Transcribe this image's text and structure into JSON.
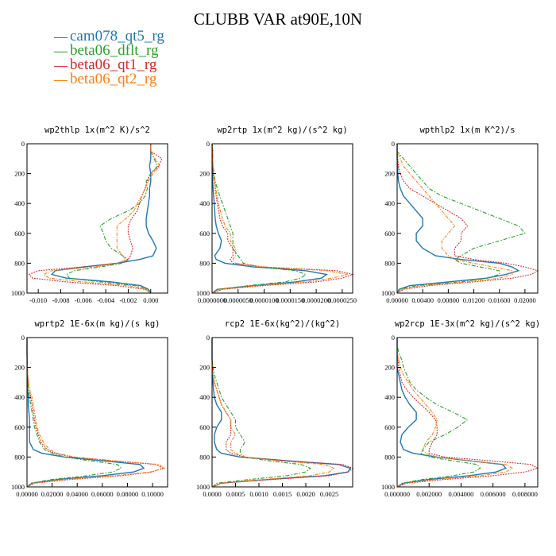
{
  "title": "CLUBB VAR at90E,10N",
  "legend": [
    {
      "label": "cam078_qt5_rg",
      "color": "#1f77b4"
    },
    {
      "label": "beta06_dflt_rg",
      "color": "#2ca02c"
    },
    {
      "label": "beta06_qt1_rg",
      "color": "#d62728"
    },
    {
      "label": "beta06_qt2_rg",
      "color": "#ff7f0e"
    }
  ],
  "chart_data": [
    {
      "type": "line",
      "title": "wp2thlp  1x(m^2 K)/s^2",
      "ylim": [
        1000,
        0
      ],
      "yticks": [
        "0",
        "200",
        "400",
        "600",
        "800",
        "1000"
      ],
      "xlim": [
        -0.011,
        0.0015
      ],
      "xticks": [
        -0.01,
        -0.008,
        -0.006,
        -0.004,
        -0.002,
        0.0
      ],
      "xticklabels": [
        "-0.010",
        "-0.008",
        "-0.006",
        "-0.004",
        "-0.002",
        "0.000"
      ],
      "y": [
        1000,
        975,
        950,
        925,
        900,
        875,
        850,
        825,
        800,
        775,
        750,
        700,
        650,
        600,
        550,
        500,
        450,
        400,
        350,
        300,
        250,
        200,
        150,
        100,
        50,
        0
      ],
      "series": [
        {
          "name": "cam078_qt5_rg",
          "values": [
            0,
            -0.0002,
            -0.0009,
            -0.0035,
            -0.0075,
            -0.0088,
            -0.0085,
            -0.006,
            -0.003,
            -0.001,
            0.0002,
            0.0005,
            0.0002,
            -0.0002,
            -0.0004,
            -0.0004,
            -0.0003,
            -0.0002,
            -0.0001,
            -0.0001,
            0.0,
            0.0,
            -0.0001,
            0.0,
            0.0,
            0.0
          ]
        },
        {
          "name": "beta06_dflt_rg",
          "values": [
            0,
            -0.0003,
            -0.0014,
            -0.0045,
            -0.0072,
            -0.0075,
            -0.0068,
            -0.0045,
            -0.0025,
            -0.002,
            -0.0025,
            -0.0035,
            -0.004,
            -0.0042,
            -0.0045,
            -0.0035,
            -0.002,
            -0.001,
            -0.0005,
            -0.0003,
            -0.0004,
            0.0,
            0.0006,
            0.0003,
            0.0,
            0.0
          ]
        },
        {
          "name": "beta06_qt1_rg",
          "values": [
            0,
            -0.0005,
            -0.003,
            -0.0075,
            -0.0105,
            -0.0108,
            -0.01,
            -0.006,
            -0.003,
            -0.002,
            -0.0018,
            -0.0016,
            -0.0018,
            -0.002,
            -0.002,
            -0.0017,
            -0.0012,
            -0.001,
            -0.0008,
            -0.0005,
            -0.0003,
            0.0,
            0.0007,
            0.001,
            0.0,
            0.0
          ]
        },
        {
          "name": "beta06_qt2_rg",
          "values": [
            0,
            -0.0004,
            -0.002,
            -0.006,
            -0.009,
            -0.0095,
            -0.0088,
            -0.005,
            -0.0028,
            -0.0022,
            -0.0025,
            -0.003,
            -0.003,
            -0.003,
            -0.003,
            -0.0022,
            -0.0015,
            -0.0012,
            -0.0008,
            -0.0005,
            -0.0002,
            0.0002,
            0.0008,
            0.0004,
            0.0,
            0.0
          ]
        }
      ]
    },
    {
      "type": "line",
      "title": "wp2rtp  1x(m^2 kg)/(s^2 kg)",
      "ylim": [
        1000,
        0
      ],
      "yticks": [
        "0",
        "200",
        "400",
        "600",
        "800",
        "1000"
      ],
      "xlim": [
        0,
        2.7e-05
      ],
      "xticks": [
        0,
        5e-06,
        1e-05,
        1.5e-05,
        2e-05,
        2.5e-05
      ],
      "xticklabels": [
        "0.0000000",
        "0.0000050",
        "0.0000100",
        "0.0000150",
        "0.0000200",
        "0.0000250"
      ],
      "y": [
        1000,
        975,
        950,
        925,
        900,
        875,
        850,
        825,
        800,
        775,
        750,
        700,
        650,
        600,
        550,
        500,
        450,
        400,
        350,
        300,
        250,
        200,
        150,
        100,
        50,
        0
      ],
      "series": [
        {
          "name": "cam078_qt5_rg",
          "values": [
            0,
            1e-06,
            8e-06,
            1.6e-05,
            2.1e-05,
            2.2e-05,
            1.8e-05,
            8e-06,
            2.5e-06,
            8e-07,
            5e-07,
            1.5e-06,
            1.8e-06,
            1.2e-06,
            8e-07,
            6e-07,
            5e-07,
            4e-07,
            3e-07,
            2e-07,
            1e-07,
            1e-07,
            1e-07,
            1e-07,
            1e-07,
            0
          ]
        },
        {
          "name": "beta06_dflt_rg",
          "values": [
            0,
            1e-06,
            7e-06,
            1.4e-05,
            1.7e-05,
            1.8e-05,
            1.6e-05,
            9e-06,
            6e-06,
            5.5e-06,
            5e-06,
            4e-06,
            4e-06,
            4e-06,
            3.5e-06,
            3e-06,
            2.5e-06,
            2e-06,
            1.5e-06,
            1e-06,
            6e-07,
            4e-07,
            2e-07,
            1e-07,
            1e-07,
            0
          ]
        },
        {
          "name": "beta06_qt1_rg",
          "values": [
            0,
            2e-06,
            1e-05,
            2e-05,
            2.5e-05,
            2.7e-05,
            2.4e-05,
            1e-05,
            4e-06,
            3.5e-06,
            4e-06,
            4e-06,
            3e-06,
            3e-06,
            2e-06,
            1.5e-06,
            1.3e-06,
            1e-06,
            8e-07,
            6e-07,
            4e-07,
            2e-07,
            1e-07,
            1e-07,
            1e-07,
            0
          ]
        },
        {
          "name": "beta06_qt2_rg",
          "values": [
            0,
            1.5e-06,
            9e-06,
            1.8e-05,
            2.3e-05,
            2.6e-05,
            2.2e-05,
            1e-05,
            4.5e-06,
            4e-06,
            4.5e-06,
            4.5e-06,
            3.5e-06,
            3.5e-06,
            2.5e-06,
            2e-06,
            1.6e-06,
            1.2e-06,
            1e-06,
            7e-07,
            5e-07,
            3e-07,
            2e-07,
            1e-07,
            1e-07,
            0
          ]
        }
      ]
    },
    {
      "type": "line",
      "title": "wpthlp2  1x(m K^2)/s",
      "ylim": [
        1000,
        0
      ],
      "yticks": [
        "0",
        "200",
        "400",
        "600",
        "800",
        "1000"
      ],
      "xlim": [
        0,
        0.022
      ],
      "xticks": [
        0,
        0.004,
        0.008,
        0.012,
        0.016,
        0.02
      ],
      "xticklabels": [
        "0.00000",
        "0.00400",
        "0.00800",
        "0.01200",
        "0.01600",
        "0.02000"
      ],
      "y": [
        1000,
        975,
        950,
        925,
        900,
        875,
        850,
        825,
        800,
        775,
        750,
        700,
        650,
        600,
        550,
        500,
        450,
        400,
        350,
        300,
        250,
        200,
        150,
        100,
        50,
        0
      ],
      "series": [
        {
          "name": "cam078_qt5_rg",
          "values": [
            0,
            0.0003,
            0.002,
            0.008,
            0.014,
            0.017,
            0.019,
            0.018,
            0.016,
            0.01,
            0.006,
            0.004,
            0.003,
            0.003,
            0.004,
            0.004,
            0.003,
            0.002,
            0.001,
            0.0005,
            0.0002,
            0.0001,
            0.0001,
            0,
            0,
            0
          ]
        },
        {
          "name": "beta06_dflt_rg",
          "values": [
            0,
            0.0005,
            0.003,
            0.01,
            0.014,
            0.016,
            0.016,
            0.013,
            0.01,
            0.009,
            0.01,
            0.012,
            0.016,
            0.02,
            0.019,
            0.016,
            0.013,
            0.01,
            0.007,
            0.005,
            0.004,
            0.003,
            0.002,
            0.001,
            0,
            0
          ]
        },
        {
          "name": "beta06_qt1_rg",
          "values": [
            0,
            0.001,
            0.005,
            0.012,
            0.018,
            0.021,
            0.022,
            0.02,
            0.017,
            0.012,
            0.009,
            0.009,
            0.01,
            0.01,
            0.011,
            0.01,
            0.008,
            0.006,
            0.004,
            0.002,
            0.001,
            0.0005,
            0.0002,
            0.0001,
            0,
            0
          ]
        },
        {
          "name": "beta06_qt2_rg",
          "values": [
            0,
            0.0008,
            0.004,
            0.011,
            0.016,
            0.018,
            0.018,
            0.015,
            0.012,
            0.009,
            0.008,
            0.007,
            0.007,
            0.008,
            0.009,
            0.008,
            0.007,
            0.006,
            0.005,
            0.004,
            0.003,
            0.002,
            0.001,
            0.0005,
            0,
            0
          ]
        }
      ]
    },
    {
      "type": "line",
      "title": "wprtp2  1E-6x(m kg)/(s kg)",
      "ylim": [
        1000,
        0
      ],
      "yticks": [
        "0",
        "200",
        "400",
        "600",
        "800",
        "1000"
      ],
      "xlim": [
        0,
        0.112
      ],
      "xticks": [
        0,
        0.02,
        0.04,
        0.06,
        0.08,
        0.1
      ],
      "xticklabels": [
        "0.00000",
        "0.02000",
        "0.04000",
        "0.06000",
        "0.08000",
        "0.10000"
      ],
      "y": [
        1000,
        975,
        950,
        925,
        900,
        875,
        850,
        825,
        800,
        775,
        750,
        700,
        650,
        600,
        550,
        500,
        450,
        400,
        350,
        300,
        250,
        200,
        150,
        100,
        50,
        0
      ],
      "series": [
        {
          "name": "cam078_qt5_rg",
          "values": [
            0,
            0.004,
            0.025,
            0.06,
            0.085,
            0.093,
            0.09,
            0.06,
            0.03,
            0.012,
            0.005,
            0.002,
            0.002,
            0.002,
            0.002,
            0.0015,
            0.001,
            0.001,
            0.0005,
            0.0003,
            0.0002,
            0.0001,
            0.0001,
            0,
            0,
            0
          ]
        },
        {
          "name": "beta06_dflt_rg",
          "values": [
            0,
            0.003,
            0.02,
            0.048,
            0.068,
            0.075,
            0.072,
            0.05,
            0.03,
            0.02,
            0.014,
            0.01,
            0.008,
            0.006,
            0.005,
            0.004,
            0.003,
            0.002,
            0.001,
            0.0008,
            0.0005,
            0.0002,
            0.0001,
            0,
            0,
            0
          ]
        },
        {
          "name": "beta06_qt1_rg",
          "values": [
            0,
            0.006,
            0.035,
            0.075,
            0.1,
            0.108,
            0.103,
            0.068,
            0.036,
            0.022,
            0.016,
            0.011,
            0.009,
            0.007,
            0.006,
            0.005,
            0.004,
            0.003,
            0.002,
            0.001,
            0.0006,
            0.0003,
            0.0001,
            0,
            0,
            0
          ]
        },
        {
          "name": "beta06_qt2_rg",
          "values": [
            0,
            0.005,
            0.03,
            0.07,
            0.098,
            0.11,
            0.105,
            0.07,
            0.038,
            0.024,
            0.018,
            0.013,
            0.01,
            0.008,
            0.007,
            0.006,
            0.005,
            0.004,
            0.002,
            0.0012,
            0.0007,
            0.0003,
            0.0001,
            0,
            0,
            0
          ]
        }
      ]
    },
    {
      "type": "line",
      "title": "rcp2  1E-6x(kg^2)/(kg^2)",
      "ylim": [
        1000,
        0
      ],
      "yticks": [
        "0",
        "200",
        "400",
        "600",
        "800",
        "1000"
      ],
      "xlim": [
        0,
        0.003
      ],
      "xticks": [
        0,
        0.0005,
        0.001,
        0.0015,
        0.002,
        0.0025
      ],
      "xticklabels": [
        "0.0000",
        "0.0005",
        "0.0010",
        "0.0015",
        "0.0020",
        "0.0025"
      ],
      "y": [
        1000,
        975,
        950,
        925,
        900,
        875,
        850,
        825,
        800,
        775,
        750,
        700,
        650,
        600,
        550,
        500,
        450,
        400,
        350,
        300,
        250,
        200,
        150,
        100,
        50,
        0
      ],
      "series": [
        {
          "name": "cam078_qt5_rg",
          "values": [
            0,
            0.0002,
            0.0012,
            0.0024,
            0.0029,
            0.00295,
            0.0027,
            0.0016,
            0.0006,
            0.0002,
            0.0001,
            5e-05,
            5e-05,
            0.0001,
            0.0002,
            0.0002,
            0.0001,
            5e-05,
            3e-05,
            2e-05,
            1e-05,
            1e-05,
            0,
            0,
            0,
            0
          ]
        },
        {
          "name": "beta06_dflt_rg",
          "values": [
            0,
            0.0001,
            0.0008,
            0.0016,
            0.002,
            0.0021,
            0.0019,
            0.0012,
            0.0007,
            0.0006,
            0.0006,
            0.0007,
            0.0006,
            0.0005,
            0.0005,
            0.0004,
            0.0003,
            0.0002,
            0.00015,
            0.0001,
            5e-05,
            2e-05,
            0,
            0,
            0,
            0
          ]
        },
        {
          "name": "beta06_qt1_rg",
          "values": [
            0,
            0.0002,
            0.0013,
            0.0025,
            0.0029,
            0.003,
            0.0028,
            0.0016,
            0.0007,
            0.0004,
            0.0003,
            0.0003,
            0.0004,
            0.0004,
            0.0004,
            0.0003,
            0.0002,
            0.00015,
            0.0001,
            5e-05,
            2e-05,
            1e-05,
            0,
            0,
            0,
            0
          ]
        },
        {
          "name": "beta06_qt2_rg",
          "values": [
            0,
            0.0002,
            0.0011,
            0.0021,
            0.0025,
            0.0026,
            0.0024,
            0.0014,
            0.0007,
            0.0005,
            0.0004,
            0.0004,
            0.0005,
            0.0004,
            0.0004,
            0.0003,
            0.0002,
            0.00015,
            0.0001,
            5e-05,
            2e-05,
            1e-05,
            0,
            0,
            0,
            0
          ]
        }
      ]
    },
    {
      "type": "line",
      "title": "wp2rcp  1E-3x(m^2 kg)/(s^2 kg)",
      "ylim": [
        1000,
        0
      ],
      "yticks": [
        "0",
        "200",
        "400",
        "600",
        "800",
        "1000"
      ],
      "xlim": [
        0,
        0.0088
      ],
      "xticks": [
        0,
        0.002,
        0.004,
        0.006,
        0.008
      ],
      "xticklabels": [
        "0.000000",
        "0.002000",
        "0.004000",
        "0.006000",
        "0.008000"
      ],
      "y": [
        1000,
        975,
        950,
        925,
        900,
        875,
        850,
        825,
        800,
        775,
        750,
        700,
        650,
        600,
        550,
        500,
        450,
        400,
        350,
        300,
        250,
        200,
        150,
        100,
        50,
        0
      ],
      "series": [
        {
          "name": "cam078_qt5_rg",
          "values": [
            0,
            0.0004,
            0.002,
            0.0045,
            0.0062,
            0.0068,
            0.0066,
            0.0045,
            0.0025,
            0.001,
            0.0004,
            0.0002,
            0.0003,
            0.0007,
            0.0012,
            0.0012,
            0.0008,
            0.0005,
            0.0003,
            0.0002,
            0.0001,
            0,
            0,
            0,
            0,
            0
          ]
        },
        {
          "name": "beta06_dflt_rg",
          "values": [
            0,
            0.0003,
            0.0016,
            0.0035,
            0.0048,
            0.0052,
            0.005,
            0.0035,
            0.002,
            0.0015,
            0.0016,
            0.002,
            0.003,
            0.0038,
            0.0044,
            0.0035,
            0.0025,
            0.0018,
            0.0012,
            0.0008,
            0.0006,
            0.0004,
            0.0003,
            0.0001,
            0,
            0
          ]
        },
        {
          "name": "beta06_qt1_rg",
          "values": [
            0,
            0.0006,
            0.003,
            0.006,
            0.008,
            0.0088,
            0.0084,
            0.0058,
            0.003,
            0.002,
            0.002,
            0.0022,
            0.0025,
            0.0025,
            0.0024,
            0.002,
            0.0015,
            0.001,
            0.0006,
            0.0003,
            0.0002,
            0.0001,
            5e-05,
            0,
            0,
            0
          ]
        },
        {
          "name": "beta06_qt2_rg",
          "values": [
            0,
            0.0005,
            0.0025,
            0.0052,
            0.0068,
            0.0072,
            0.0068,
            0.0045,
            0.0025,
            0.0018,
            0.0016,
            0.0018,
            0.0022,
            0.0024,
            0.0025,
            0.0022,
            0.0018,
            0.0014,
            0.001,
            0.0007,
            0.0004,
            0.0002,
            0.0001,
            0,
            0,
            0
          ]
        }
      ]
    }
  ]
}
